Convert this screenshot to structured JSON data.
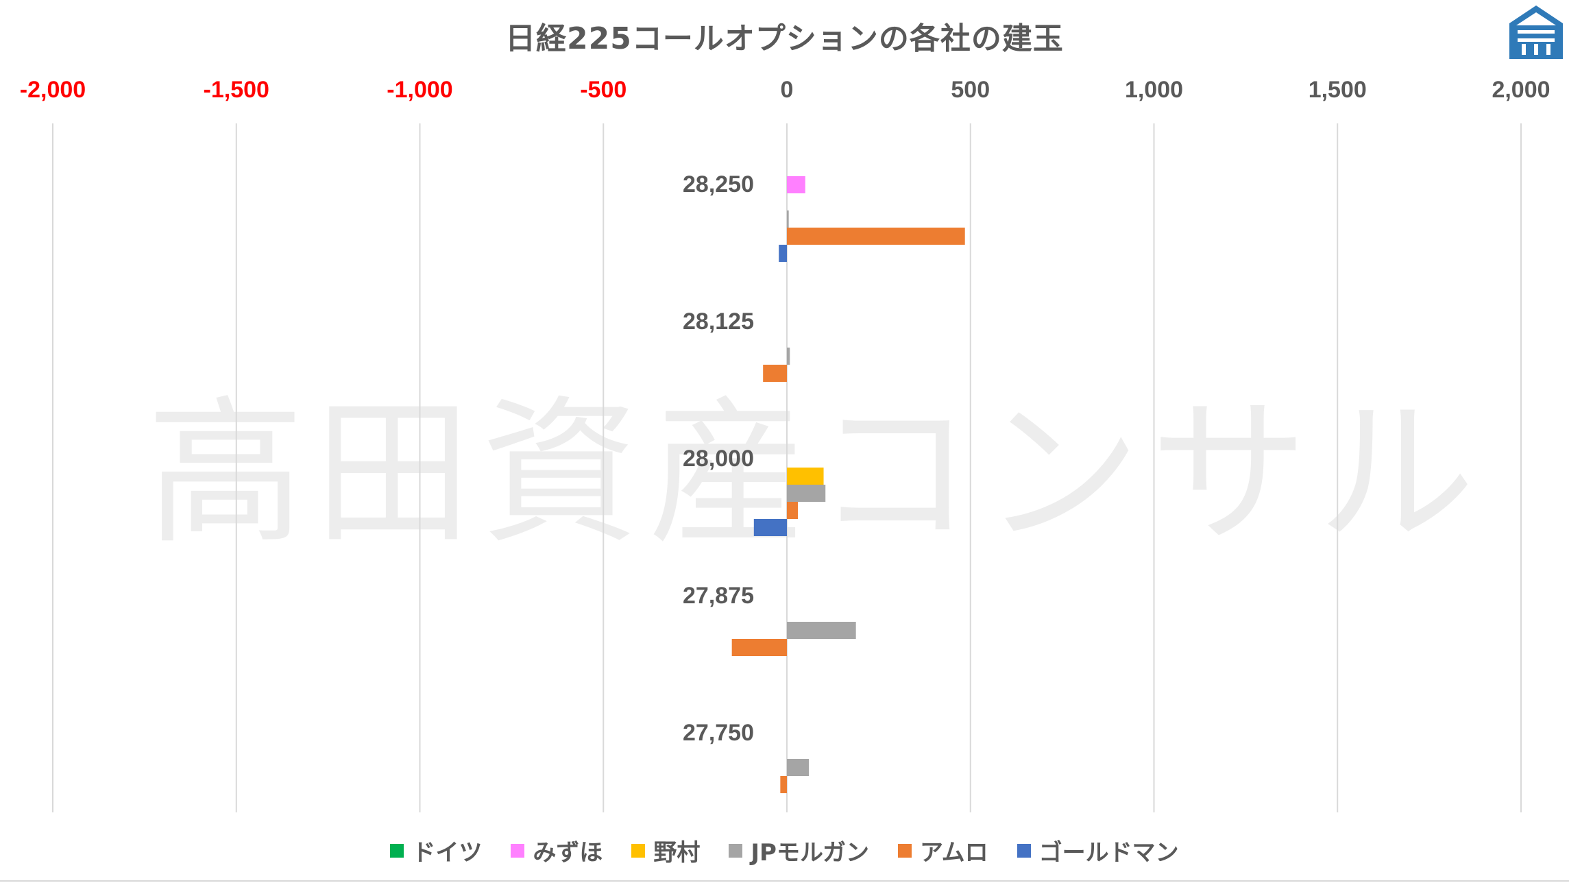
{
  "page": {
    "title": "日経225コールオプションの各社の建玉",
    "watermark": "高田資産コンサル",
    "logo_icon": "house-shield-logo-icon",
    "logo_color": "#2f7ab8"
  },
  "colors": {
    "negative_tick": "#ff0000",
    "positive_tick": "#595959",
    "grid": "#d9d9d9",
    "text": "#595959"
  },
  "chart_data": {
    "type": "bar",
    "orientation": "horizontal",
    "title": "日経225コールオプションの各社の建玉",
    "xlim": [
      -2000,
      2000
    ],
    "x_ticks": [
      -2000,
      -1500,
      -1000,
      -500,
      0,
      500,
      1000,
      1500,
      2000
    ],
    "x_tick_labels": [
      "-2,000",
      "-1,500",
      "-1,000",
      "-500",
      "0",
      "500",
      "1,000",
      "1,500",
      "2,000"
    ],
    "x_axis_position": "top",
    "grid": true,
    "legend_position": "bottom",
    "categories": [
      "28,250",
      "28,125",
      "28,000",
      "27,875",
      "27,750"
    ],
    "series": [
      {
        "name": "ドイツ",
        "color": "#00b050",
        "values": [
          0,
          0,
          0,
          0,
          0
        ]
      },
      {
        "name": "みずほ",
        "color": "#ff80ff",
        "values": [
          50,
          0,
          0,
          0,
          0
        ]
      },
      {
        "name": "野村",
        "color": "#ffc000",
        "values": [
          0,
          0,
          100,
          0,
          0
        ]
      },
      {
        "name": "JPモルガン",
        "color": "#a5a5a5",
        "values": [
          5,
          8,
          105,
          188,
          60
        ]
      },
      {
        "name": "アムロ",
        "color": "#ed7d31",
        "values": [
          485,
          -65,
          30,
          -150,
          -18
        ]
      },
      {
        "name": "ゴールドマン",
        "color": "#4472c4",
        "values": [
          -22,
          0,
          -90,
          0,
          0
        ]
      }
    ]
  }
}
